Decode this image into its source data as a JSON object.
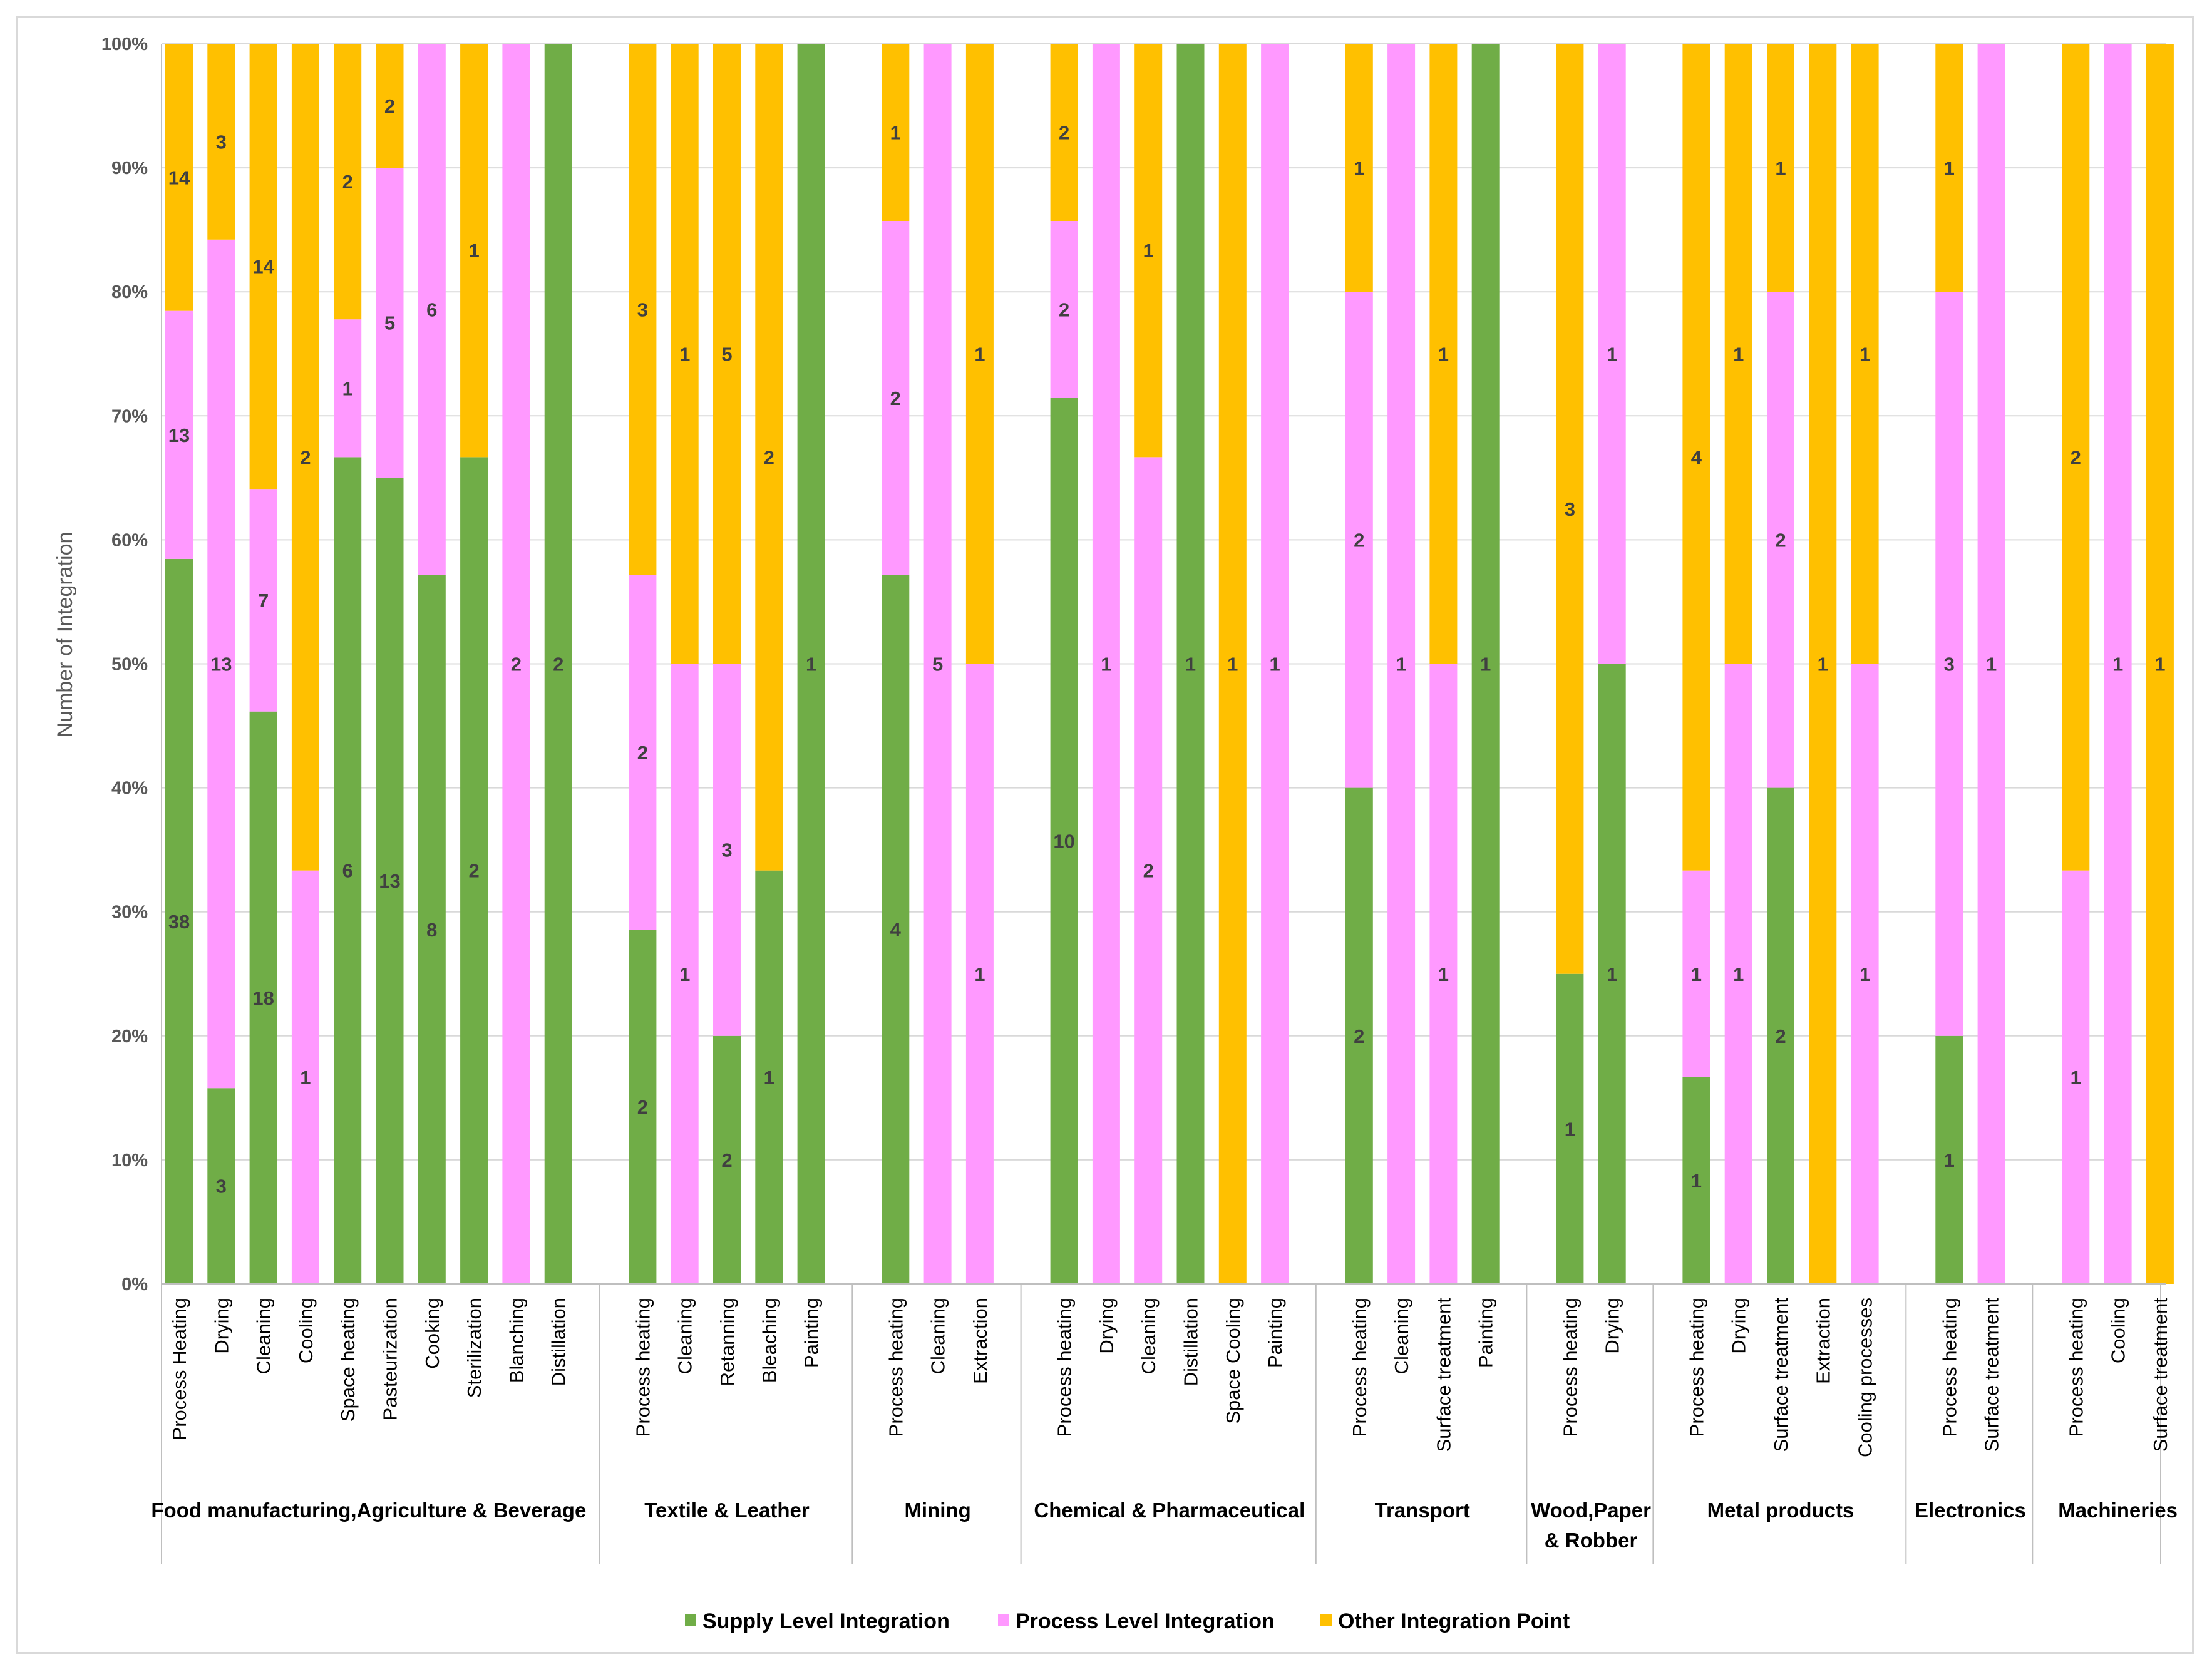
{
  "chart_data": {
    "type": "bar",
    "stacked": "percent",
    "title": "",
    "xlabel": "",
    "ylabel": "Number of Integration",
    "ylim": [
      0,
      100
    ],
    "y_ticks": [
      "0%",
      "10%",
      "20%",
      "30%",
      "40%",
      "50%",
      "60%",
      "70%",
      "80%",
      "90%",
      "100%"
    ],
    "grid": true,
    "legend_position": "bottom",
    "series": [
      {
        "name": "Supply Level Integration",
        "color": "#70ad47"
      },
      {
        "name": "Process Level Integration",
        "color": "#ff99ff"
      },
      {
        "name": "Other Integration Point",
        "color": "#ffc000"
      }
    ],
    "groups": [
      {
        "name": "Food manufacturing,Agriculture & Beverage",
        "bars": [
          {
            "category": "Process Heating",
            "values": [
              38,
              13,
              14
            ]
          },
          {
            "category": "Drying",
            "values": [
              3,
              13,
              3
            ]
          },
          {
            "category": "Cleaning",
            "values": [
              18,
              7,
              14
            ]
          },
          {
            "category": "Cooling",
            "values": [
              0,
              1,
              2
            ]
          },
          {
            "category": "Space heating",
            "values": [
              6,
              1,
              2
            ]
          },
          {
            "category": "Pasteurization",
            "values": [
              13,
              5,
              2
            ]
          },
          {
            "category": "Cooking",
            "values": [
              8,
              6,
              0
            ]
          },
          {
            "category": "Sterilization",
            "values": [
              2,
              0,
              1
            ]
          },
          {
            "category": "Blanching",
            "values": [
              0,
              2,
              0
            ]
          },
          {
            "category": "Distillation",
            "values": [
              2,
              0,
              0
            ]
          }
        ]
      },
      {
        "name": "Textile & Leather",
        "bars": [
          {
            "category": "Process heating",
            "values": [
              2,
              2,
              3
            ]
          },
          {
            "category": "Cleaning",
            "values": [
              0,
              1,
              1
            ]
          },
          {
            "category": "Retanning",
            "values": [
              2,
              3,
              5
            ]
          },
          {
            "category": "Bleaching",
            "values": [
              1,
              0,
              2
            ]
          },
          {
            "category": "Painting",
            "values": [
              1,
              0,
              0
            ]
          }
        ]
      },
      {
        "name": "Mining",
        "bars": [
          {
            "category": "Process heating",
            "values": [
              4,
              2,
              1
            ]
          },
          {
            "category": "Cleaning",
            "values": [
              0,
              5,
              0
            ]
          },
          {
            "category": "Extraction",
            "values": [
              0,
              1,
              1
            ]
          }
        ]
      },
      {
        "name": "Chemical & Pharmaceutical",
        "bars": [
          {
            "category": "Process heating",
            "values": [
              10,
              2,
              2
            ]
          },
          {
            "category": "Drying",
            "values": [
              0,
              1,
              0
            ]
          },
          {
            "category": "Cleaning",
            "values": [
              0,
              2,
              1
            ]
          },
          {
            "category": "Distillation",
            "values": [
              1,
              0,
              0
            ]
          },
          {
            "category": "Space Cooling",
            "values": [
              0,
              0,
              1
            ]
          },
          {
            "category": "Painting",
            "values": [
              0,
              1,
              0
            ]
          }
        ]
      },
      {
        "name": "Transport",
        "bars": [
          {
            "category": "Process heating",
            "values": [
              2,
              2,
              1
            ]
          },
          {
            "category": "Cleaning",
            "values": [
              0,
              1,
              0
            ]
          },
          {
            "category": "Surface treatment",
            "values": [
              0,
              1,
              1
            ]
          },
          {
            "category": "Painting",
            "values": [
              1,
              0,
              0
            ]
          }
        ]
      },
      {
        "name": "Wood,Paper & Robber",
        "bars": [
          {
            "category": "Process heating",
            "values": [
              1,
              0,
              3
            ]
          },
          {
            "category": "Drying",
            "values": [
              1,
              1,
              0
            ]
          }
        ]
      },
      {
        "name": "Metal products",
        "bars": [
          {
            "category": "Process heating",
            "values": [
              1,
              1,
              4
            ]
          },
          {
            "category": "Drying",
            "values": [
              0,
              1,
              1
            ]
          },
          {
            "category": "Surface treatment",
            "values": [
              2,
              2,
              1
            ]
          },
          {
            "category": "Extraction",
            "values": [
              0,
              0,
              1
            ]
          },
          {
            "category": "Cooling processes",
            "values": [
              0,
              1,
              1
            ]
          }
        ]
      },
      {
        "name": "Electronics",
        "bars": [
          {
            "category": "Process heating",
            "values": [
              1,
              3,
              1
            ]
          },
          {
            "category": "Surface treatment",
            "values": [
              0,
              1,
              0
            ]
          }
        ]
      },
      {
        "name": "Machineries",
        "bars": [
          {
            "category": "Process heating",
            "values": [
              0,
              1,
              2
            ]
          },
          {
            "category": "Cooling",
            "values": [
              0,
              1,
              0
            ]
          },
          {
            "category": "Surface treatment",
            "values": [
              0,
              0,
              1
            ]
          }
        ]
      }
    ]
  }
}
